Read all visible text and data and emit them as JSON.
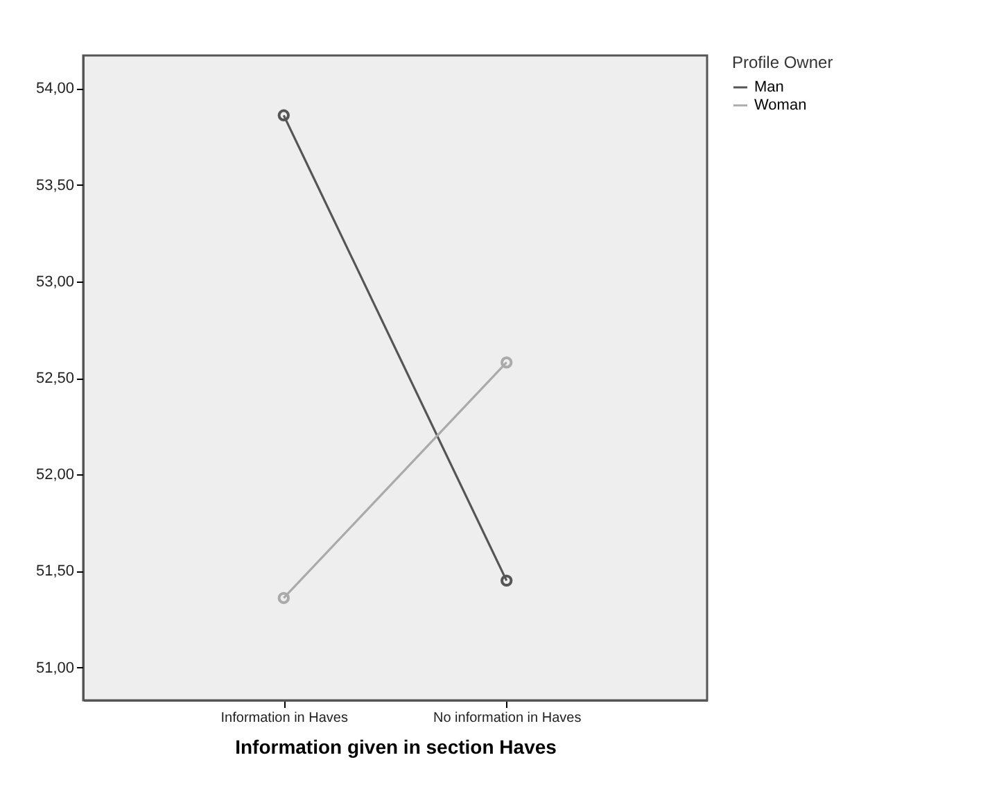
{
  "chart_data": {
    "type": "line",
    "xlabel": "Information given in section Haves",
    "legend_title": "Profile Owner",
    "categories": [
      "Information in Haves",
      "No information in Haves"
    ],
    "series": [
      {
        "name": "Man",
        "color": "#555555",
        "values": [
          53.86,
          51.45
        ]
      },
      {
        "name": "Woman",
        "color": "#aaaaaa",
        "values": [
          51.36,
          52.58
        ]
      }
    ],
    "ylim": [
      50.83,
      54.17
    ],
    "yticks": [
      {
        "value": 51,
        "label": "51,00"
      },
      {
        "value": 51.5,
        "label": "51,50"
      },
      {
        "value": 52,
        "label": "52,00"
      },
      {
        "value": 52.5,
        "label": "52,50"
      },
      {
        "value": 53,
        "label": "53,00"
      },
      {
        "value": 53.5,
        "label": "53,50"
      },
      {
        "value": 54,
        "label": "54,00"
      }
    ],
    "legend": "top right",
    "marker": "circle"
  }
}
